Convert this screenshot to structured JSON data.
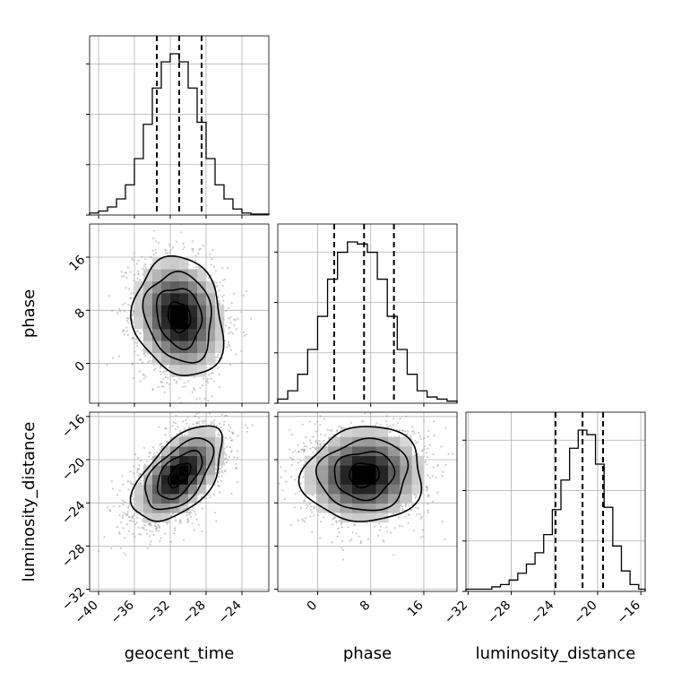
{
  "chart_data": {
    "type": "corner",
    "parameters": [
      "geocent_time",
      "phase",
      "luminosity_distance"
    ],
    "ranges": {
      "geocent_time": [
        -41,
        -21
      ],
      "phase": [
        -6,
        21
      ],
      "luminosity_distance": [
        -32.2,
        -15.6
      ]
    },
    "ticks": {
      "geocent_time": [
        -40,
        -36,
        -32,
        -28,
        -24
      ],
      "phase": [
        0,
        8,
        16
      ],
      "luminosity_distance": [
        -32,
        -28,
        -24,
        -20,
        -16
      ]
    },
    "tick_labels": {
      "geocent_time": [
        "−40",
        "−36",
        "−32",
        "−28",
        "−24"
      ],
      "phase": [
        "0",
        "8",
        "16"
      ],
      "luminosity_distance": [
        "−32",
        "−28",
        "−24",
        "−20",
        "−16"
      ]
    },
    "quantiles": {
      "geocent_time": [
        -33.5,
        -31.0,
        -28.5
      ],
      "phase": [
        2.5,
        7.0,
        11.5
      ],
      "luminosity_distance": [
        -23.9,
        -21.4,
        -19.5
      ]
    },
    "histograms": {
      "geocent_time": {
        "bin_edges": [
          -41,
          -40,
          -39,
          -38,
          -37,
          -36,
          -35,
          -34,
          -33,
          -32,
          -31,
          -30,
          -29,
          -28,
          -27,
          -26,
          -25,
          -24,
          -23,
          -22,
          -21
        ],
        "counts": [
          1,
          2,
          4,
          8,
          15,
          28,
          45,
          63,
          76,
          80,
          76,
          63,
          46,
          28,
          15,
          8,
          3,
          1,
          0.5,
          0.5
        ]
      },
      "phase": {
        "bin_edges": [
          -6,
          -4.5,
          -3,
          -1.5,
          0,
          1.5,
          3,
          4.5,
          6,
          7.5,
          9,
          10.5,
          12,
          13.5,
          15,
          16.5,
          18,
          19.5,
          21
        ],
        "counts": [
          2,
          6,
          14,
          26,
          42,
          60,
          73,
          78,
          77,
          73,
          60,
          42,
          26,
          14,
          6,
          3,
          2,
          1
        ]
      },
      "luminosity_distance": {
        "bin_edges": [
          -32.2,
          -31.4,
          -30.6,
          -29.8,
          -29.0,
          -28.2,
          -27.4,
          -26.6,
          -25.8,
          -25.0,
          -24.2,
          -23.4,
          -22.6,
          -21.8,
          -21.0,
          -20.2,
          -19.4,
          -18.6,
          -17.8,
          -17.0,
          -16.2,
          -15.6
        ],
        "counts": [
          1,
          1,
          1,
          2,
          3,
          5,
          8,
          12,
          17,
          25,
          36,
          49,
          63,
          71,
          69,
          56,
          37,
          20,
          9,
          3,
          1
        ]
      }
    },
    "pair_densities": [
      {
        "x": "geocent_time",
        "y": "phase",
        "center": [
          -31.0,
          7.0
        ],
        "sigma": [
          2.5,
          4.5
        ],
        "correlation": -0.15,
        "contour_levels_sigma": [
          0.5,
          1.0,
          1.5,
          2.0
        ]
      },
      {
        "x": "geocent_time",
        "y": "luminosity_distance",
        "center": [
          -31.0,
          -21.4
        ],
        "sigma": [
          2.5,
          2.2
        ],
        "correlation": 0.55,
        "contour_levels_sigma": [
          0.5,
          1.0,
          1.5,
          2.0
        ]
      },
      {
        "x": "phase",
        "y": "luminosity_distance",
        "center": [
          7.0,
          -21.4
        ],
        "sigma": [
          4.5,
          2.2
        ],
        "correlation": 0.05,
        "contour_levels_sigma": [
          0.5,
          1.0,
          1.5,
          2.0
        ]
      }
    ]
  }
}
